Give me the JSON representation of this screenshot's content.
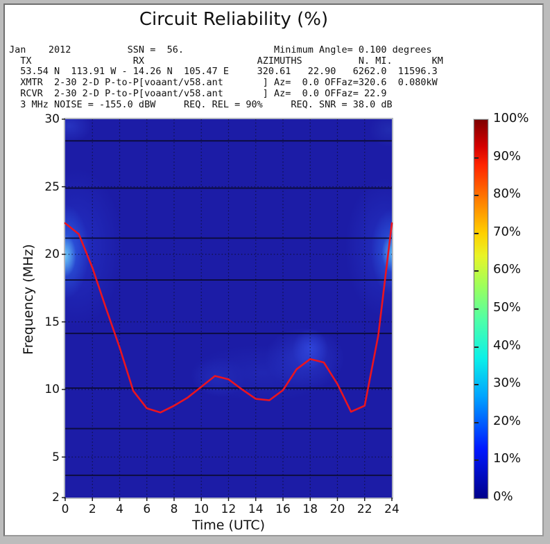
{
  "figure": {
    "title": "Circuit Reliability (%)"
  },
  "header": {
    "lines": [
      "Jan    2012          SSN =  56.                Minimum Angle= 0.100 degrees",
      "  TX                  RX                    AZIMUTHS          N. MI.       KM",
      "  53.54 N  113.91 W - 14.26 N  105.47 E     320.61   22.90   6262.0  11596.3",
      "  XMTR  2-30 2-D P-to-P[voaant/v58.ant       ] Az=  0.0 OFFaz=320.6  0.080kW",
      "  RCVR  2-30 2-D P-to-P[voaant/v58.ant       ] Az=  0.0 OFFaz= 22.9",
      "  3 MHz NOISE = -155.0 dBW     REQ. REL = 90%     REQ. SNR = 38.0 dB"
    ]
  },
  "chart_data": {
    "type": "heatmap",
    "title": "Circuit Reliability (%)",
    "xlabel": "Time (UTC)",
    "ylabel": "Frequency (MHz)",
    "x_range": [
      0,
      24
    ],
    "y_range": [
      2,
      30
    ],
    "x_ticks": [
      0,
      2,
      4,
      6,
      8,
      10,
      12,
      14,
      16,
      18,
      20,
      22,
      24
    ],
    "y_ticks": [
      30,
      25,
      20,
      15,
      10,
      5,
      2
    ],
    "grid": {
      "x_hours": [
        2,
        4,
        6,
        8,
        10,
        12,
        14,
        16,
        18,
        20,
        22
      ],
      "y_mhz": [
        25,
        20,
        15,
        10,
        5
      ]
    },
    "band_lines_mhz": [
      28.4,
      24.9,
      21.2,
      18.1,
      14.15,
      10.1,
      7.1,
      3.65
    ],
    "muf_series": {
      "name": "MUF-curve",
      "color": "#ea1420",
      "hours": [
        0,
        1,
        2,
        3,
        4,
        5,
        6,
        7,
        8,
        9,
        10,
        11,
        12,
        13,
        14,
        15,
        16,
        17,
        18,
        19,
        20,
        21,
        22,
        23,
        24
      ],
      "mhz": [
        22.3,
        21.5,
        19.0,
        16.0,
        13.1,
        9.9,
        8.6,
        8.3,
        8.8,
        9.4,
        10.2,
        11.0,
        10.75,
        10.0,
        9.3,
        9.2,
        9.95,
        11.5,
        12.25,
        12.0,
        10.4,
        8.35,
        8.8,
        14.0,
        22.3
      ]
    },
    "heatmap": {
      "base_color": "#1c1ca6",
      "hotspots": [
        {
          "hour": 0,
          "mhz": 19.9,
          "rx": 22,
          "ry": 42,
          "color": "#6cc6f6"
        },
        {
          "hour": 0,
          "mhz": 20.2,
          "rx": 48,
          "ry": 95,
          "color": "#2e63e4"
        },
        {
          "hour": 0.8,
          "mhz": 20.5,
          "rx": 95,
          "ry": 160,
          "color": "#232fc2"
        },
        {
          "hour": 24,
          "mhz": 20.1,
          "rx": 20,
          "ry": 38,
          "color": "#55aaee"
        },
        {
          "hour": 24,
          "mhz": 20.2,
          "rx": 42,
          "ry": 85,
          "color": "#2c5ade"
        },
        {
          "hour": 23.5,
          "mhz": 20.5,
          "rx": 80,
          "ry": 140,
          "color": "#2330c0"
        },
        {
          "hour": 18,
          "mhz": 13.0,
          "rx": 36,
          "ry": 40,
          "color": "#2f44da"
        },
        {
          "hour": 17.6,
          "mhz": 12.3,
          "rx": 80,
          "ry": 62,
          "color": "#2734c4"
        },
        {
          "hour": 14.5,
          "mhz": 11.2,
          "rx": 150,
          "ry": 58,
          "color": "#2026b2"
        },
        {
          "hour": 11.3,
          "mhz": 10.9,
          "rx": 55,
          "ry": 40,
          "color": "#232eba"
        },
        {
          "hour": 0.3,
          "mhz": 29.5,
          "rx": 45,
          "ry": 34,
          "color": "#2733c0"
        },
        {
          "hour": 23.8,
          "mhz": 29.2,
          "rx": 40,
          "ry": 34,
          "color": "#222cb0"
        }
      ]
    },
    "colorbar": {
      "tick_labels": [
        "100%",
        "90%",
        "80%",
        "70%",
        "60%",
        "50%",
        "40%",
        "30%",
        "20%",
        "10%",
        "0%"
      ],
      "colormap": "jet",
      "gradient_stops": [
        {
          "color": "#00008a",
          "pos": 0
        },
        {
          "color": "#0018ff",
          "pos": 13
        },
        {
          "color": "#00a4ff",
          "pos": 27
        },
        {
          "color": "#0cf0e8",
          "pos": 37
        },
        {
          "color": "#4effa8",
          "pos": 47
        },
        {
          "color": "#9cff5c",
          "pos": 56
        },
        {
          "color": "#e8f428",
          "pos": 64
        },
        {
          "color": "#ffd000",
          "pos": 70
        },
        {
          "color": "#ff7c00",
          "pos": 79
        },
        {
          "color": "#ff2400",
          "pos": 88
        },
        {
          "color": "#d40000",
          "pos": 93
        },
        {
          "color": "#7f0000",
          "pos": 100
        }
      ]
    }
  }
}
